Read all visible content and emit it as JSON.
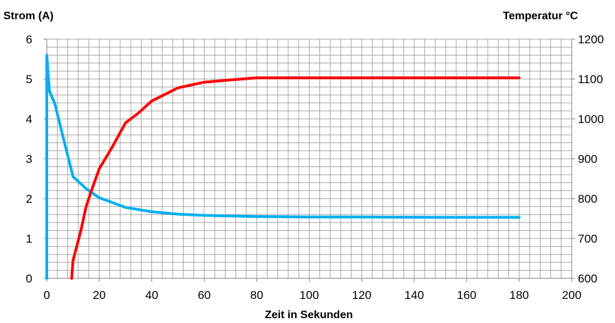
{
  "chart_data": {
    "type": "line",
    "xlabel": "Zeit in Sekunden",
    "ylabel_left": "Strom (A)",
    "ylabel_right": "Temperatur °C",
    "xlim": [
      0,
      200
    ],
    "ylim_left": [
      0,
      6
    ],
    "ylim_right": [
      600,
      1200
    ],
    "x_ticks": [
      "0",
      "20",
      "40",
      "60",
      "80",
      "100",
      "120",
      "140",
      "160",
      "180",
      "200"
    ],
    "y_left_ticks": [
      "0",
      "1",
      "2",
      "3",
      "4",
      "5",
      "6"
    ],
    "y_right_ticks": [
      "600",
      "700",
      "800",
      "900",
      "1000",
      "1100",
      "1200"
    ],
    "grid": true,
    "series": [
      {
        "axis": "left",
        "color": "#00b0f0",
        "points": [
          [
            0,
            0
          ],
          [
            0,
            5.6
          ],
          [
            1,
            4.7
          ],
          [
            3,
            4.4
          ],
          [
            6,
            3.6
          ],
          [
            10,
            2.55
          ],
          [
            15,
            2.25
          ],
          [
            20,
            2.02
          ],
          [
            30,
            1.78
          ],
          [
            40,
            1.67
          ],
          [
            50,
            1.61
          ],
          [
            60,
            1.58
          ],
          [
            80,
            1.55
          ],
          [
            100,
            1.54
          ],
          [
            120,
            1.54
          ],
          [
            150,
            1.53
          ],
          [
            180,
            1.53
          ]
        ]
      },
      {
        "axis": "right",
        "color": "#ff0000",
        "points": [
          [
            9.5,
            600
          ],
          [
            10,
            645
          ],
          [
            11,
            670
          ],
          [
            13,
            720
          ],
          [
            15,
            780
          ],
          [
            17,
            820
          ],
          [
            20,
            875
          ],
          [
            25,
            930
          ],
          [
            30,
            990
          ],
          [
            35,
            1015
          ],
          [
            40,
            1045
          ],
          [
            50,
            1078
          ],
          [
            60,
            1092
          ],
          [
            70,
            1098
          ],
          [
            80,
            1103
          ],
          [
            100,
            1103
          ],
          [
            140,
            1103
          ],
          [
            180,
            1103
          ]
        ]
      }
    ]
  }
}
